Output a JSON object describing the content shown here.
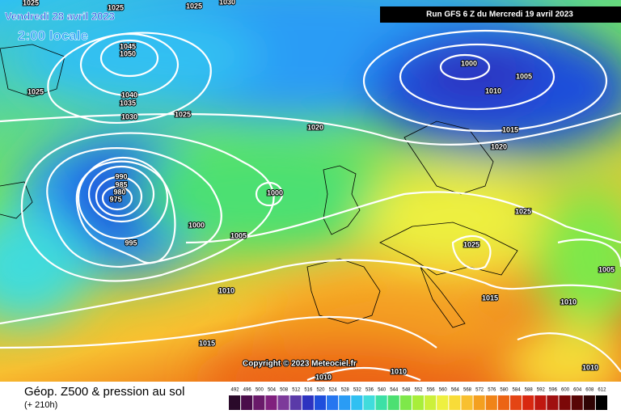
{
  "header": {
    "valid_date": "Vendredi 28 avril 2023",
    "local_time": "2:00 locale",
    "run": "Run GFS 6 Z du Mercredi 19 avril 2023"
  },
  "copyright": "Copyright © 2023 Meteociel.fr",
  "footer": {
    "title": "Géop. Z500 & pression au sol",
    "lead": "(+ 210h)"
  },
  "isobar_labels": [
    1025,
    1025,
    1025,
    1030,
    1045,
    1050,
    1025,
    1040,
    1035,
    1030,
    1025,
    1020,
    1000,
    1005,
    1010,
    1015,
    1020,
    990,
    985,
    980,
    975,
    1000,
    1000,
    1005,
    995,
    1025,
    1025,
    1005,
    1015,
    1010,
    1010,
    1015,
    1010,
    1010,
    1010
  ],
  "scale": [
    {
      "value": 492,
      "color": "#2a0a2a"
    },
    {
      "value": 496,
      "color": "#4b0d4b"
    },
    {
      "value": 500,
      "color": "#6a1a6a"
    },
    {
      "value": 504,
      "color": "#80207e"
    },
    {
      "value": 508,
      "color": "#7d3a9a"
    },
    {
      "value": 512,
      "color": "#5a3aa8"
    },
    {
      "value": 516,
      "color": "#2d33c0"
    },
    {
      "value": 520,
      "color": "#1f4fdc"
    },
    {
      "value": 524,
      "color": "#2676f0"
    },
    {
      "value": 528,
      "color": "#2a9cf5"
    },
    {
      "value": 532,
      "color": "#30c0f2"
    },
    {
      "value": 536,
      "color": "#40dcdc"
    },
    {
      "value": 540,
      "color": "#3ce0a6"
    },
    {
      "value": 544,
      "color": "#4ce072"
    },
    {
      "value": 548,
      "color": "#7ee84a"
    },
    {
      "value": 552,
      "color": "#a8ee3a"
    },
    {
      "value": 556,
      "color": "#ccf03a"
    },
    {
      "value": 560,
      "color": "#eef040"
    },
    {
      "value": 564,
      "color": "#f8dc38"
    },
    {
      "value": 568,
      "color": "#f8c030"
    },
    {
      "value": 572,
      "color": "#f4a020"
    },
    {
      "value": 576,
      "color": "#f08418"
    },
    {
      "value": 580,
      "color": "#ec6414"
    },
    {
      "value": 584,
      "color": "#e44414"
    },
    {
      "value": 588,
      "color": "#d82810"
    },
    {
      "value": 592,
      "color": "#c01810"
    },
    {
      "value": 596,
      "color": "#a01010"
    },
    {
      "value": 600,
      "color": "#7c0808"
    },
    {
      "value": 604,
      "color": "#580606"
    },
    {
      "value": 608,
      "color": "#300404"
    },
    {
      "value": 612,
      "color": "#000000"
    }
  ]
}
